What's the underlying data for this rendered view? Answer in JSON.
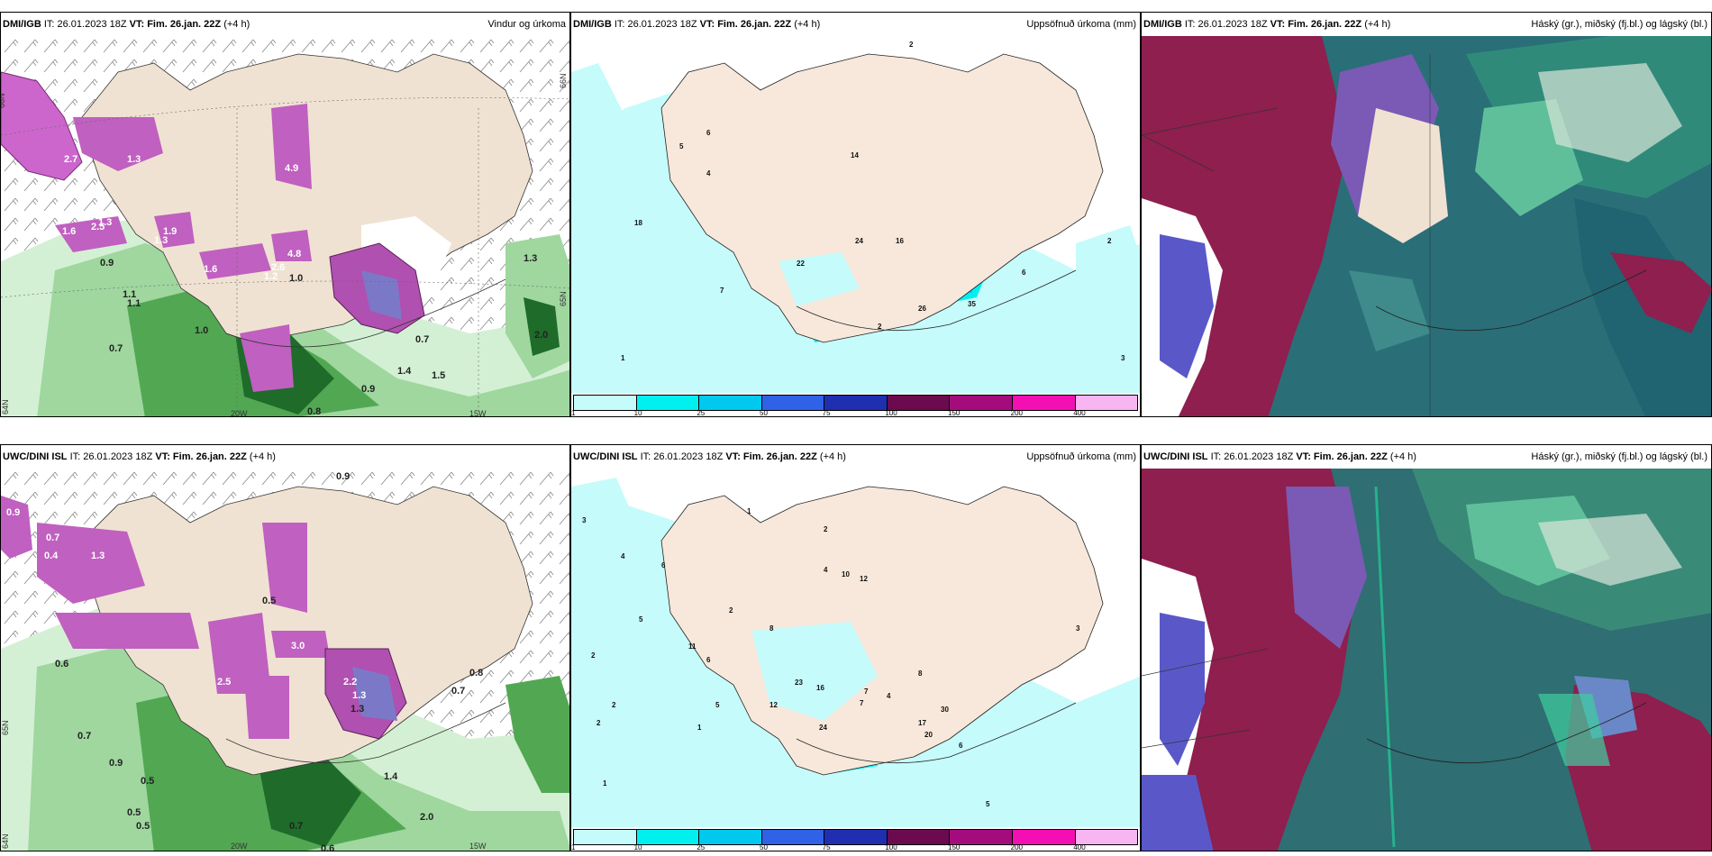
{
  "panels": {
    "p1": {
      "model": "DMI/IGB",
      "it": "IT: 26.01.2023 18Z",
      "vt_label": "VT:",
      "vt": "Fim. 26.jan. 22Z",
      "lead": "(+4 h)",
      "title": "Vindur og úrkoma"
    },
    "p2": {
      "model": "DMI/IGB",
      "it": "IT: 26.01.2023 18Z",
      "vt_label": "VT:",
      "vt": "Fim. 26.jan. 22Z",
      "lead": "(+4 h)",
      "title": "Uppsöfnuð úrkoma (mm)"
    },
    "p3": {
      "model": "DMI/IGB",
      "it": "IT: 26.01.2023 18Z",
      "vt_label": "VT:",
      "vt": "Fim. 26.jan. 22Z",
      "lead": "(+4 h)",
      "title": "Háský (gr.), miðský (fj.bl.) og lágský (bl.)"
    },
    "p4": {
      "model": "UWC/DINI ISL",
      "it": "IT: 26.01.2023 18Z",
      "vt_label": "VT:",
      "vt": "Fim. 26.jan. 22Z",
      "lead": "(+4 h)",
      "title": ""
    },
    "p5": {
      "model": "UWC/DINI ISL",
      "it": "IT: 26.01.2023 18Z",
      "vt_label": "VT:",
      "vt": "Fim. 26.jan. 22Z",
      "lead": "(+4 h)",
      "title": "Uppsöfnuð úrkoma (mm)"
    },
    "p6": {
      "model": "UWC/DINI ISL",
      "it": "IT: 26.01.2023 18Z",
      "vt_label": "VT:",
      "vt": "Fim. 26.jan. 22Z",
      "lead": "(+4 h)",
      "title": "Háský (gr.), miðský (fj.bl.) og lágský (bl.)"
    }
  },
  "axis_labels": {
    "lat65": "65N",
    "lat66": "66N",
    "lat64": "64N",
    "lon20": "20W",
    "lon15": "15W"
  },
  "colorbar": {
    "colors": [
      "#c6fbfb",
      "#00f0f0",
      "#00c8ee",
      "#2f62e6",
      "#1f2fb0",
      "#6b0a4f",
      "#a40c7e",
      "#f40fb4",
      "#f7b5f2"
    ],
    "ticks": [
      "1",
      "10",
      "25",
      "50",
      "75",
      "100",
      "150",
      "200",
      "400"
    ]
  },
  "labels": {
    "p1": [
      "2.7",
      "2.5",
      "1.9",
      "1.6",
      "0.9",
      "1.1",
      "0.7",
      "1.0",
      "1.6",
      "2.6",
      "1.0",
      "1.3",
      "1.3",
      "1.2",
      "4.9",
      "4.8",
      "2.0",
      "0.9",
      "0.8",
      "1.3",
      "1.5",
      "1.4",
      "1.1",
      "1.3",
      "0.7"
    ],
    "p2": [
      "2",
      "6",
      "5",
      "4",
      "14",
      "18",
      "22",
      "24",
      "16",
      "26",
      "2",
      "7",
      "6",
      "35",
      "3",
      "1",
      "2"
    ],
    "p4": [
      "0.9",
      "0.9",
      "0.7",
      "0.4",
      "1.3",
      "2.5",
      "1.3",
      "0.7",
      "0.6",
      "0.5",
      "0.9",
      "3.0",
      "2.2",
      "1.3",
      "0.7",
      "0.8",
      "0.5",
      "0.5",
      "2.0",
      "0.7",
      "0.6",
      "1.4",
      "0.5"
    ],
    "p5": [
      "3",
      "1",
      "2",
      "4",
      "6",
      "4",
      "10",
      "12",
      "5",
      "11",
      "6",
      "2",
      "12",
      "7",
      "23",
      "16",
      "7",
      "4",
      "8",
      "30",
      "17",
      "6",
      "24",
      "20",
      "2",
      "2",
      "1",
      "5",
      "1",
      "2",
      "3",
      "8",
      "5"
    ]
  }
}
